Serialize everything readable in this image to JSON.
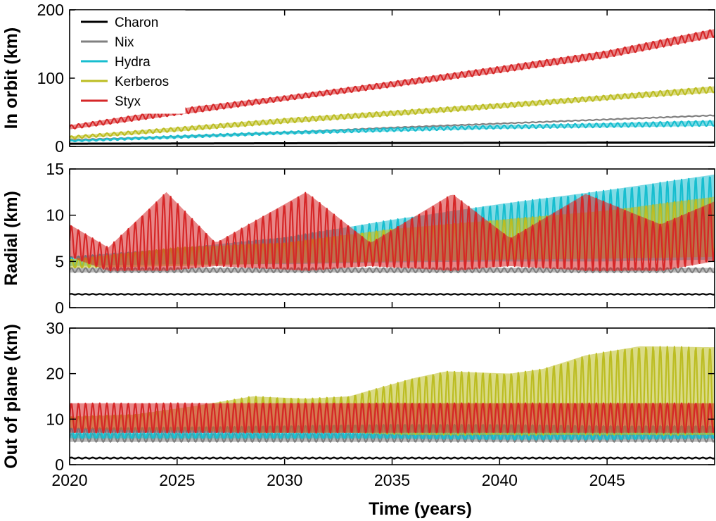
{
  "chart_data": [
    {
      "type": "line",
      "panel": "In orbit",
      "ylabel": "In orbit (km)",
      "xlabel": "",
      "xlim": [
        2020,
        2050
      ],
      "ylim": [
        0,
        200
      ],
      "yticks": [
        0,
        100,
        200
      ],
      "legend": {
        "placement": "top-left",
        "entries": [
          "Charon",
          "Nix",
          "Hydra",
          "Kerberos",
          "Styx"
        ]
      },
      "series": [
        {
          "name": "Charon",
          "color": "#000000",
          "x": [
            2020,
            2050
          ],
          "low": [
            4,
            6
          ],
          "high": [
            4,
            6
          ]
        },
        {
          "name": "Nix",
          "color": "#808080",
          "x": [
            2020,
            2025,
            2030,
            2035,
            2040,
            2045,
            2050
          ],
          "low": [
            9,
            14,
            20,
            27,
            33,
            39,
            45
          ],
          "high": [
            10,
            15,
            21,
            28,
            34,
            40,
            46
          ]
        },
        {
          "name": "Hydra",
          "color": "#17BECF",
          "x": [
            2020,
            2025,
            2030,
            2035,
            2040,
            2045,
            2050
          ],
          "low": [
            7,
            12,
            18,
            22,
            26,
            28,
            30
          ],
          "high": [
            9,
            16,
            22,
            27,
            31,
            34,
            38
          ]
        },
        {
          "name": "Kerberos",
          "color": "#BCBD22",
          "x": [
            2020,
            2025,
            2030,
            2035,
            2040,
            2045,
            2050
          ],
          "low": [
            11,
            22,
            34,
            45,
            56,
            68,
            79
          ],
          "high": [
            15,
            28,
            41,
            52,
            63,
            75,
            88
          ]
        },
        {
          "name": "Styx",
          "color": "#D62728",
          "x": [
            2020,
            2025,
            2030,
            2035,
            2040,
            2045,
            2050
          ],
          "low": [
            25,
            46,
            67,
            87,
            108,
            130,
            160
          ],
          "high": [
            31,
            55,
            74,
            95,
            117,
            140,
            172
          ]
        }
      ]
    },
    {
      "type": "line",
      "panel": "Radial",
      "ylabel": "Radial (km)",
      "xlabel": "",
      "xlim": [
        2020,
        2050
      ],
      "ylim": [
        0,
        15
      ],
      "yticks": [
        0,
        5,
        10,
        15
      ],
      "series": [
        {
          "name": "Charon",
          "color": "#000000",
          "x": [
            2020,
            2050
          ],
          "low": [
            1.4,
            1.4
          ],
          "high": [
            1.5,
            1.5
          ]
        },
        {
          "name": "Nix",
          "color": "#808080",
          "x": [
            2020,
            2050
          ],
          "low": [
            3.8,
            3.8
          ],
          "high": [
            4.3,
            4.3
          ]
        },
        {
          "name": "Hydra",
          "color": "#17BECF",
          "x": [
            2020,
            2025,
            2030,
            2035,
            2040,
            2045,
            2050
          ],
          "low": [
            4.5,
            4.7,
            4.7,
            4.9,
            5.0,
            5.0,
            5.2
          ],
          "high": [
            5.5,
            6.4,
            7.6,
            9.5,
            11.2,
            12.7,
            14.4
          ]
        },
        {
          "name": "Kerberos",
          "color": "#BCBD22",
          "x": [
            2020,
            2025,
            2030,
            2035,
            2040,
            2045,
            2050
          ],
          "low": [
            4.3,
            4.5,
            4.8,
            5.0,
            5.2,
            5.3,
            5.5
          ],
          "high": [
            5.2,
            6.5,
            7.0,
            8.5,
            9.5,
            10.5,
            12.0
          ]
        },
        {
          "name": "Styx",
          "color": "#D62728",
          "x": [
            2020,
            2021.8,
            2024.5,
            2026.8,
            2031,
            2034,
            2037.8,
            2040.5,
            2044,
            2047.5,
            2050
          ],
          "low": [
            5.5,
            4.0,
            4.0,
            4.5,
            4.0,
            4.5,
            4.0,
            4.5,
            4.0,
            4.0,
            5.0
          ],
          "high": [
            9.0,
            6.5,
            12.5,
            7.0,
            12.5,
            7.0,
            12.3,
            7.5,
            12.3,
            9.0,
            11.5
          ]
        }
      ]
    },
    {
      "type": "line",
      "panel": "Out of plane",
      "ylabel": "Out of plane (km)",
      "xlabel": "Time (years)",
      "xlim": [
        2020,
        2050
      ],
      "ylim": [
        0,
        30
      ],
      "yticks": [
        0,
        10,
        20,
        30
      ],
      "xticks": [
        2020,
        2025,
        2030,
        2035,
        2040,
        2045
      ],
      "series": [
        {
          "name": "Charon",
          "color": "#000000",
          "x": [
            2020,
            2050
          ],
          "low": [
            1.3,
            1.3
          ],
          "high": [
            1.6,
            1.6
          ]
        },
        {
          "name": "Nix",
          "color": "#808080",
          "x": [
            2020,
            2050
          ],
          "low": [
            5.0,
            5.0
          ],
          "high": [
            6.8,
            6.8
          ]
        },
        {
          "name": "Hydra",
          "color": "#17BECF",
          "x": [
            2020,
            2025,
            2030,
            2035,
            2040,
            2045,
            2050
          ],
          "low": [
            5.8,
            5.8,
            5.8,
            5.8,
            5.5,
            5.5,
            5.8
          ],
          "high": [
            8.0,
            8.2,
            8.5,
            8.8,
            8.8,
            8.5,
            8.5
          ]
        },
        {
          "name": "Kerberos",
          "color": "#BCBD22",
          "x": [
            2020,
            2023,
            2026,
            2028.5,
            2031,
            2033,
            2036,
            2037.5,
            2040.5,
            2042,
            2044,
            2046.5,
            2050
          ],
          "low": [
            8.0,
            7.5,
            7.5,
            7.0,
            7.0,
            7.0,
            6.5,
            6.5,
            6.5,
            6.5,
            6.5,
            6.5,
            6.5
          ],
          "high": [
            10.5,
            11.0,
            13.0,
            15.0,
            14.5,
            15.0,
            19.0,
            20.5,
            20.0,
            21.0,
            24.0,
            26.0,
            25.8
          ]
        },
        {
          "name": "Styx",
          "color": "#D62728",
          "x": [
            2020,
            2050
          ],
          "low": [
            7.0,
            7.0
          ],
          "high": [
            13.5,
            13.5
          ]
        }
      ]
    }
  ]
}
